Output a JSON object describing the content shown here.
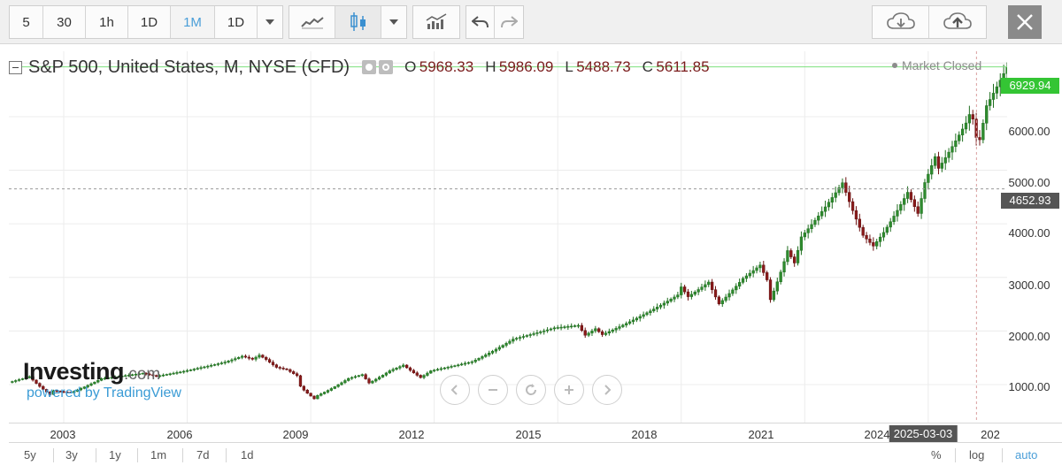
{
  "toolbar": {
    "intervals": [
      "5",
      "30",
      "1h",
      "1D",
      "1M",
      "1D"
    ],
    "active_interval": "1M"
  },
  "header": {
    "symbol": "S&P 500, United States, M, NYSE (CFD)",
    "open_label": "O",
    "open": "5968.33",
    "high_label": "H",
    "high": "5986.09",
    "low_label": "L",
    "low": "5488.73",
    "close_label": "C",
    "close": "5611.85",
    "status": "Market Closed"
  },
  "watermark": {
    "brand": "Investing",
    "suffix": ".com",
    "powered": "powered by TradingView"
  },
  "price_axis": {
    "labels": [
      "6000.00",
      "5000.00",
      "4000.00",
      "3000.00",
      "2000.00",
      "1000.00"
    ],
    "last_price": "6929.94",
    "crosshair_price": "4652.93"
  },
  "time_axis": {
    "labels": [
      "2003",
      "2006",
      "2009",
      "2012",
      "2015",
      "2018",
      "2021",
      "2024",
      "202"
    ],
    "crosshair_date": "2025-03-03"
  },
  "range_bar": {
    "ranges": [
      "5y",
      "3y",
      "1y",
      "1m",
      "7d",
      "1d"
    ],
    "right": [
      "%",
      "log",
      "auto"
    ],
    "active_right": "auto"
  },
  "colors": {
    "up": "#2e8b2e",
    "down": "#8b1a1a",
    "last_price_line": "#7ee07e",
    "last_price_tag": "#34c534",
    "crosshair_tag": "#555555",
    "accent": "#4a9ed8"
  },
  "chart_data": {
    "type": "candlestick",
    "interval": "monthly",
    "x_range": [
      "2001-09",
      "2025-12"
    ],
    "ylim": [
      290,
      7220
    ],
    "last_price": 6929.94,
    "crosshair": {
      "date": "2025-03-03",
      "price": 4652.93
    },
    "anchors": [
      [
        "2001-09",
        1040
      ],
      [
        "2002-03",
        1147
      ],
      [
        "2002-07",
        911
      ],
      [
        "2002-09",
        815
      ],
      [
        "2002-10",
        885
      ],
      [
        "2003-03",
        848
      ],
      [
        "2003-12",
        1111
      ],
      [
        "2004-12",
        1211
      ],
      [
        "2005-04",
        1156
      ],
      [
        "2005-12",
        1248
      ],
      [
        "2006-12",
        1418
      ],
      [
        "2007-05",
        1530
      ],
      [
        "2007-08",
        1473
      ],
      [
        "2007-10",
        1549
      ],
      [
        "2007-12",
        1468
      ],
      [
        "2008-03",
        1322
      ],
      [
        "2008-06",
        1280
      ],
      [
        "2008-09",
        1166
      ],
      [
        "2008-10",
        968
      ],
      [
        "2008-11",
        896
      ],
      [
        "2009-02",
        735
      ],
      [
        "2009-03",
        797
      ],
      [
        "2009-12",
        1115
      ],
      [
        "2010-04",
        1186
      ],
      [
        "2010-06",
        1030
      ],
      [
        "2010-12",
        1257
      ],
      [
        "2011-04",
        1363
      ],
      [
        "2011-09",
        1131
      ],
      [
        "2011-12",
        1257
      ],
      [
        "2012-12",
        1426
      ],
      [
        "2013-12",
        1848
      ],
      [
        "2014-12",
        2058
      ],
      [
        "2015-07",
        2104
      ],
      [
        "2015-09",
        1920
      ],
      [
        "2015-12",
        2043
      ],
      [
        "2016-02",
        1932
      ],
      [
        "2016-12",
        2238
      ],
      [
        "2017-12",
        2673
      ],
      [
        "2018-01",
        2823
      ],
      [
        "2018-03",
        2640
      ],
      [
        "2018-09",
        2913
      ],
      [
        "2018-12",
        2506
      ],
      [
        "2019-07",
        2980
      ],
      [
        "2019-12",
        3230
      ],
      [
        "2020-02",
        2954
      ],
      [
        "2020-03",
        2584
      ],
      [
        "2020-08",
        3500
      ],
      [
        "2020-10",
        3269
      ],
      [
        "2020-12",
        3756
      ],
      [
        "2021-12",
        4766
      ],
      [
        "2022-06",
        3785
      ],
      [
        "2022-09",
        3585
      ],
      [
        "2022-12",
        3839
      ],
      [
        "2023-07",
        4588
      ],
      [
        "2023-10",
        4193
      ],
      [
        "2023-12",
        4770
      ],
      [
        "2024-03",
        5254
      ],
      [
        "2024-04",
        5035
      ],
      [
        "2024-12",
        5882
      ],
      [
        "2025-01",
        6040
      ],
      [
        "2025-02",
        5954
      ],
      [
        "2025-03",
        5612
      ],
      [
        "2025-04",
        5569
      ],
      [
        "2025-06",
        6205
      ],
      [
        "2025-12",
        6930
      ]
    ]
  }
}
